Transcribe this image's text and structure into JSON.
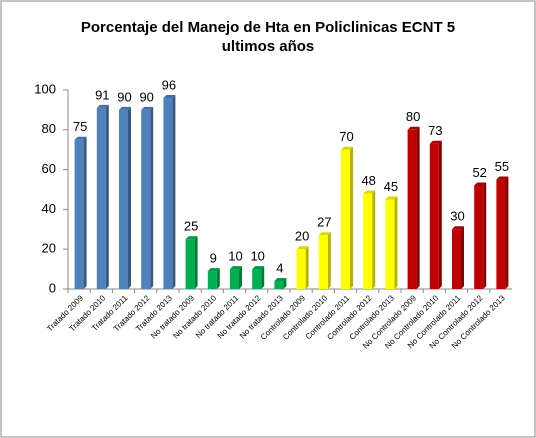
{
  "chart_data": {
    "type": "bar",
    "title": "Porcentaje del Manejo de Hta en Policlinicas ECNT  5 ultimos años",
    "categories": [
      "Tratado 2009",
      "Tratado 2010",
      "Tratado 2011",
      "Tratado 2012",
      "Tratado 2013",
      "No tratado 2009",
      "No tratado 2010",
      "No tratado 2011",
      "No tratado 2012",
      "No tratado 2013",
      "Controlado 2009",
      "Controlado 2010",
      "Controlado 2011",
      "Controlado 2012",
      "Controlado 2013",
      "No Controlado 2009",
      "No Controlado 2010",
      "No Controlado 2011",
      "No Controlado 2012",
      "No Controlado 2013"
    ],
    "values": [
      75,
      91,
      90,
      90,
      96,
      25,
      9,
      10,
      10,
      4,
      20,
      27,
      70,
      48,
      45,
      80,
      73,
      30,
      52,
      55
    ],
    "colors": [
      "#4f81bd",
      "#4f81bd",
      "#4f81bd",
      "#4f81bd",
      "#4f81bd",
      "#00b050",
      "#00b050",
      "#00b050",
      "#00b050",
      "#00b050",
      "#ffff00",
      "#ffff00",
      "#ffff00",
      "#ffff00",
      "#ffff00",
      "#c00000",
      "#c00000",
      "#c00000",
      "#c00000",
      "#c00000"
    ],
    "ylim": [
      0,
      100
    ],
    "yticks": [
      0,
      20,
      40,
      60,
      80,
      100
    ],
    "grid": false
  }
}
